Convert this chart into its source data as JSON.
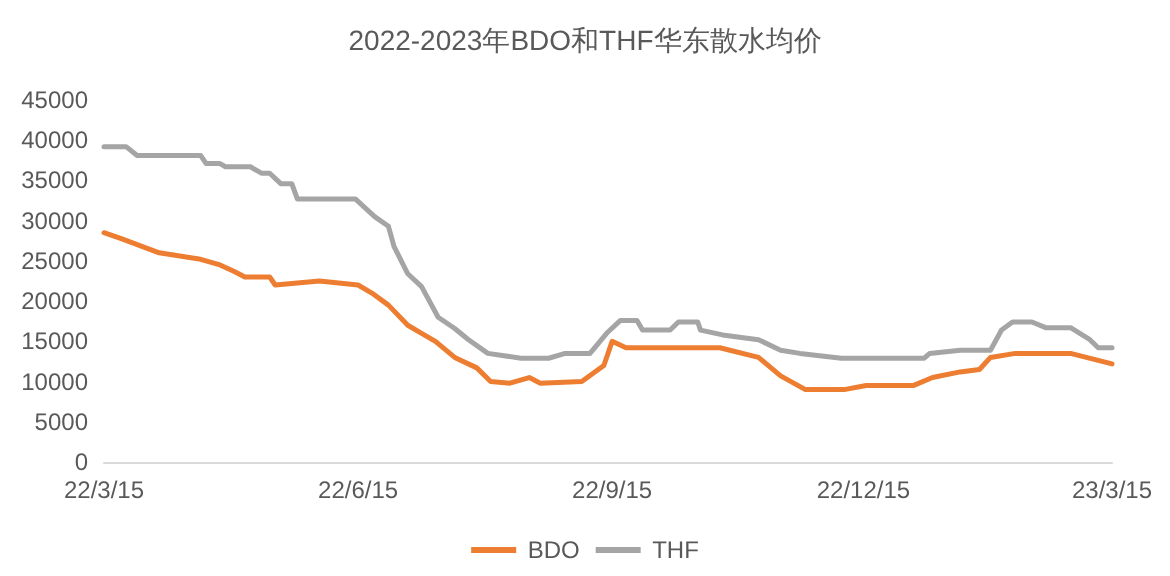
{
  "chart_data": {
    "type": "line",
    "title": "2022-2023年BDO和THF华东散水均价",
    "series": [
      {
        "name": "BDO",
        "color": "#ed7d31",
        "x": [
          "2022-03-15",
          "2022-03-21",
          "2022-04-04",
          "2022-04-19",
          "2022-04-26",
          "2022-05-01",
          "2022-05-05",
          "2022-05-14",
          "2022-05-16",
          "2022-06-01",
          "2022-06-15",
          "2022-06-20",
          "2022-06-26",
          "2022-07-03",
          "2022-07-08",
          "2022-07-13",
          "2022-07-20",
          "2022-07-28",
          "2022-08-02",
          "2022-08-09",
          "2022-08-16",
          "2022-08-20",
          "2022-09-04",
          "2022-09-08",
          "2022-09-12",
          "2022-09-15",
          "2022-09-20",
          "2022-10-24",
          "2022-11-07",
          "2022-11-15",
          "2022-11-24",
          "2022-12-08",
          "2022-12-16",
          "2023-01-02",
          "2023-01-09",
          "2023-01-19",
          "2023-01-26",
          "2023-01-30",
          "2023-02-08",
          "2023-02-28",
          "2023-03-15"
        ],
        "values": [
          28500,
          27800,
          26000,
          25200,
          24500,
          23700,
          23000,
          23000,
          22000,
          22500,
          22000,
          21000,
          19500,
          17000,
          16000,
          15000,
          13000,
          11700,
          10000,
          9800,
          10500,
          9800,
          10000,
          11000,
          12000,
          15000,
          14200,
          14200,
          13000,
          10700,
          9000,
          9000,
          9500,
          9500,
          10500,
          11200,
          11500,
          13000,
          13500,
          13500,
          12200
        ]
      },
      {
        "name": "THF",
        "color": "#a5a5a5",
        "x": [
          "2022-03-15",
          "2022-03-23",
          "2022-03-27",
          "2022-04-19",
          "2022-04-21",
          "2022-04-26",
          "2022-04-28",
          "2022-05-07",
          "2022-05-11",
          "2022-05-14",
          "2022-05-18",
          "2022-05-22",
          "2022-05-24",
          "2022-06-14",
          "2022-06-21",
          "2022-06-26",
          "2022-06-28",
          "2022-07-03",
          "2022-07-08",
          "2022-07-14",
          "2022-07-20",
          "2022-07-25",
          "2022-08-01",
          "2022-08-13",
          "2022-08-23",
          "2022-08-29",
          "2022-09-07",
          "2022-09-13",
          "2022-09-18",
          "2022-09-24",
          "2022-09-26",
          "2022-10-06",
          "2022-10-09",
          "2022-10-16",
          "2022-10-17",
          "2022-10-25",
          "2022-11-07",
          "2022-11-15",
          "2022-11-22",
          "2022-12-07",
          "2023-01-06",
          "2023-01-08",
          "2023-01-19",
          "2023-01-30",
          "2023-02-03",
          "2023-02-07",
          "2023-02-14",
          "2023-02-19",
          "2023-02-28",
          "2023-03-07",
          "2023-03-10",
          "2023-03-15"
        ],
        "values": [
          39200,
          39200,
          38100,
          38100,
          37100,
          37100,
          36700,
          36700,
          35900,
          35900,
          34600,
          34600,
          32700,
          32700,
          30500,
          29300,
          26800,
          23400,
          21800,
          18000,
          16600,
          15200,
          13500,
          12900,
          12900,
          13500,
          13500,
          16000,
          17600,
          17600,
          16400,
          16400,
          17400,
          17400,
          16400,
          15800,
          15200,
          13900,
          13500,
          12900,
          12900,
          13500,
          13900,
          13900,
          16400,
          17400,
          17400,
          16700,
          16700,
          15200,
          14200,
          14200
        ]
      }
    ],
    "xlim": [
      "2022-03-15",
      "2023-03-15"
    ],
    "xticks": [
      {
        "value": "2022-03-15",
        "label": "22/3/15"
      },
      {
        "value": "2022-06-15",
        "label": "22/6/15"
      },
      {
        "value": "2022-09-15",
        "label": "22/9/15"
      },
      {
        "value": "2022-12-15",
        "label": "22/12/15"
      },
      {
        "value": "2023-03-15",
        "label": "23/3/15"
      }
    ],
    "ylim": [
      0,
      45000
    ],
    "yticks": [
      0,
      5000,
      10000,
      15000,
      20000,
      25000,
      30000,
      35000,
      40000,
      45000
    ],
    "grid": false,
    "legend": "bottom",
    "marker": "none",
    "line_style": "solid"
  }
}
